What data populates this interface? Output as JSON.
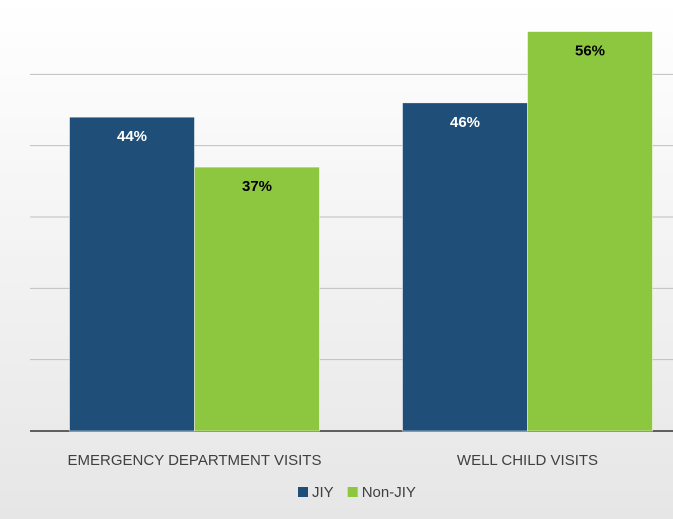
{
  "chart_data": {
    "type": "bar",
    "categories": [
      "EMERGENCY DEPARTMENT VISITS",
      "WELL CHILD VISITS"
    ],
    "series": [
      {
        "name": "JIY",
        "color": "#1f4e79",
        "values": [
          44,
          46
        ],
        "value_labels": [
          "44%",
          "46%"
        ]
      },
      {
        "name": "Non-JIY",
        "color": "#8dc63f",
        "values": [
          37,
          56
        ],
        "value_labels": [
          "37%",
          "56%"
        ]
      }
    ],
    "ylim": [
      0,
      60
    ],
    "yticks": [
      0,
      10,
      20,
      30,
      40,
      50
    ],
    "grid": true,
    "legend": "bottom"
  }
}
